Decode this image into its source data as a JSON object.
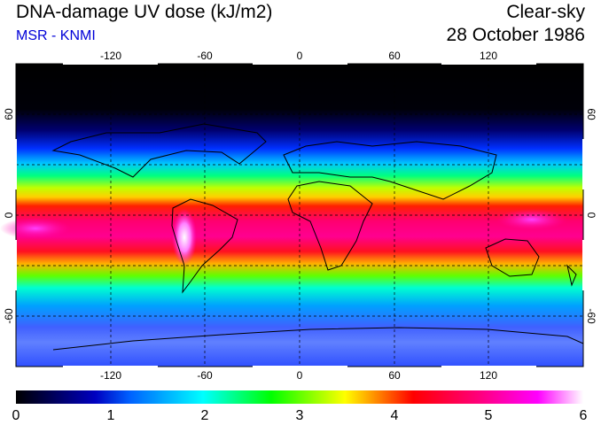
{
  "header": {
    "title": "DNA-damage UV dose (kJ/m2)",
    "credit": "MSR - KNMI",
    "condition": "Clear-sky",
    "date": "28 October 1986"
  },
  "map": {
    "lon_ticks": [
      "-120",
      "-60",
      "0",
      "60",
      "120"
    ],
    "lat_ticks_left": [
      "60",
      "0",
      "-60"
    ],
    "lat_ticks_right": [
      "60",
      "0",
      "-60"
    ]
  },
  "colorbar": {
    "labels": [
      "0",
      "1",
      "2",
      "3",
      "4",
      "5",
      "6"
    ],
    "colors": [
      "#000000",
      "#0000ff",
      "#00ffff",
      "#00ff00",
      "#ffff00",
      "#ff0000",
      "#ff00ff",
      "#ffffff"
    ]
  }
}
